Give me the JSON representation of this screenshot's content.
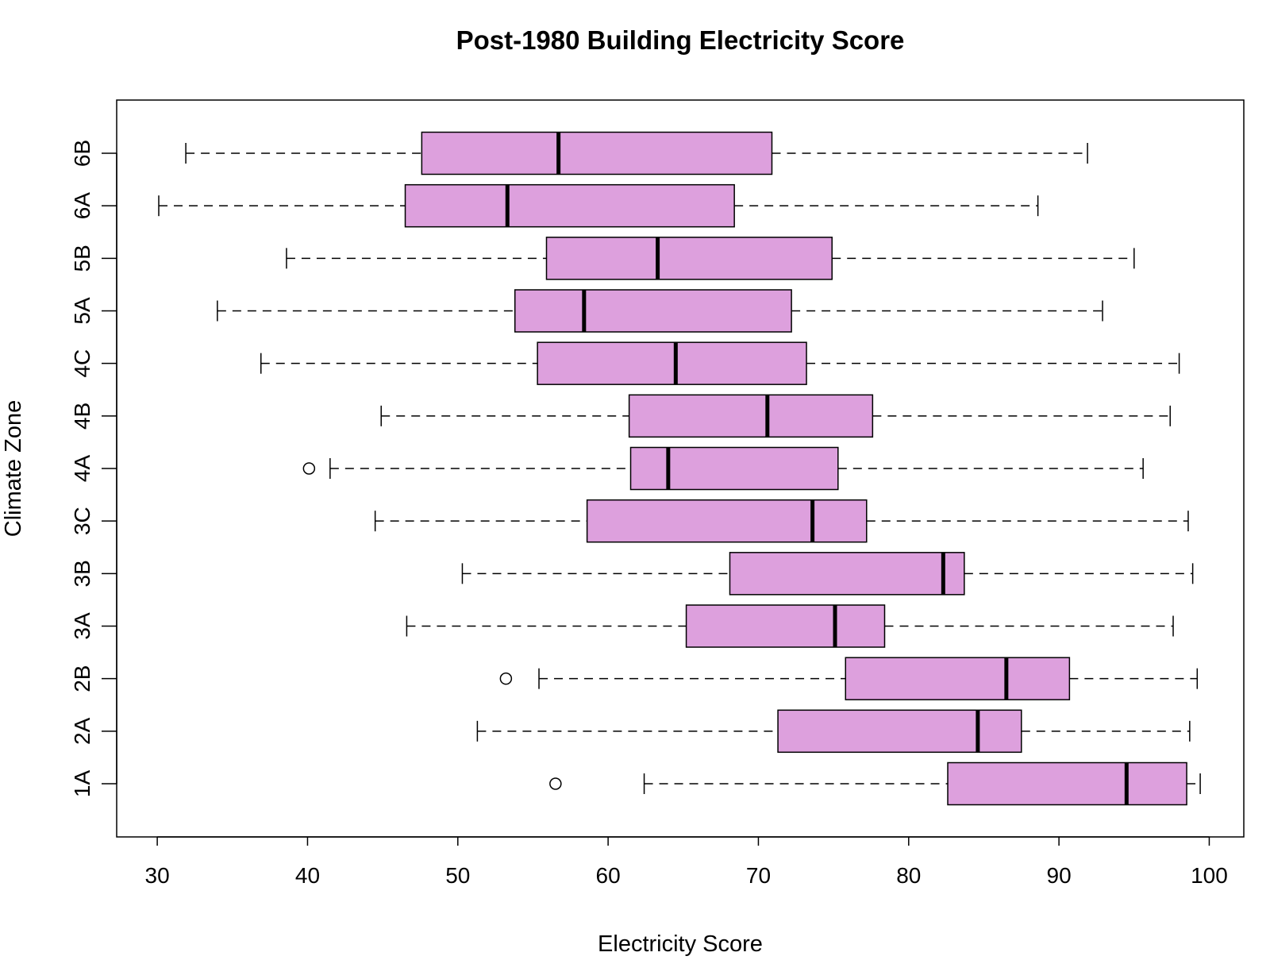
{
  "chart_data": {
    "type": "boxplot",
    "orientation": "horizontal",
    "title": "Post-1980 Building Electricity Score",
    "xlabel": "Electricity Score",
    "ylabel": "Climate Zone",
    "xlim": [
      27.3,
      102.3
    ],
    "x_ticks": [
      30,
      40,
      50,
      60,
      70,
      80,
      90,
      100
    ],
    "grid": false,
    "legend": "none",
    "box_fill": "#dda0dd",
    "box_stroke": "#000000",
    "categories": [
      "1A",
      "2A",
      "2B",
      "3A",
      "3B",
      "3C",
      "4A",
      "4B",
      "4C",
      "5A",
      "5B",
      "6A",
      "6B"
    ],
    "boxes": [
      {
        "zone": "1A",
        "whisker_low": 62.4,
        "q1": 82.6,
        "median": 94.5,
        "q3": 98.5,
        "whisker_high": 99.4,
        "outliers": [
          56.5
        ]
      },
      {
        "zone": "2A",
        "whisker_low": 51.3,
        "q1": 71.3,
        "median": 84.6,
        "q3": 87.5,
        "whisker_high": 98.7,
        "outliers": []
      },
      {
        "zone": "2B",
        "whisker_low": 55.4,
        "q1": 75.8,
        "median": 86.5,
        "q3": 90.7,
        "whisker_high": 99.2,
        "outliers": [
          53.2
        ]
      },
      {
        "zone": "3A",
        "whisker_low": 46.6,
        "q1": 65.2,
        "median": 75.1,
        "q3": 78.4,
        "whisker_high": 97.6,
        "outliers": []
      },
      {
        "zone": "3B",
        "whisker_low": 50.3,
        "q1": 68.1,
        "median": 82.3,
        "q3": 83.7,
        "whisker_high": 98.9,
        "outliers": []
      },
      {
        "zone": "3C",
        "whisker_low": 44.5,
        "q1": 58.6,
        "median": 73.6,
        "q3": 77.2,
        "whisker_high": 98.6,
        "outliers": []
      },
      {
        "zone": "4A",
        "whisker_low": 41.5,
        "q1": 61.5,
        "median": 64.0,
        "q3": 75.3,
        "whisker_high": 95.6,
        "outliers": [
          40.1
        ]
      },
      {
        "zone": "4B",
        "whisker_low": 44.9,
        "q1": 61.4,
        "median": 70.6,
        "q3": 77.6,
        "whisker_high": 97.4,
        "outliers": []
      },
      {
        "zone": "4C",
        "whisker_low": 36.9,
        "q1": 55.3,
        "median": 64.5,
        "q3": 73.2,
        "whisker_high": 98.0,
        "outliers": []
      },
      {
        "zone": "5A",
        "whisker_low": 34.0,
        "q1": 53.8,
        "median": 58.4,
        "q3": 72.2,
        "whisker_high": 92.9,
        "outliers": []
      },
      {
        "zone": "5B",
        "whisker_low": 38.6,
        "q1": 55.9,
        "median": 63.3,
        "q3": 74.9,
        "whisker_high": 95.0,
        "outliers": []
      },
      {
        "zone": "6A",
        "whisker_low": 30.1,
        "q1": 46.5,
        "median": 53.3,
        "q3": 68.4,
        "whisker_high": 88.6,
        "outliers": []
      },
      {
        "zone": "6B",
        "whisker_low": 31.9,
        "q1": 47.6,
        "median": 56.7,
        "q3": 70.9,
        "whisker_high": 91.9,
        "outliers": []
      }
    ]
  }
}
